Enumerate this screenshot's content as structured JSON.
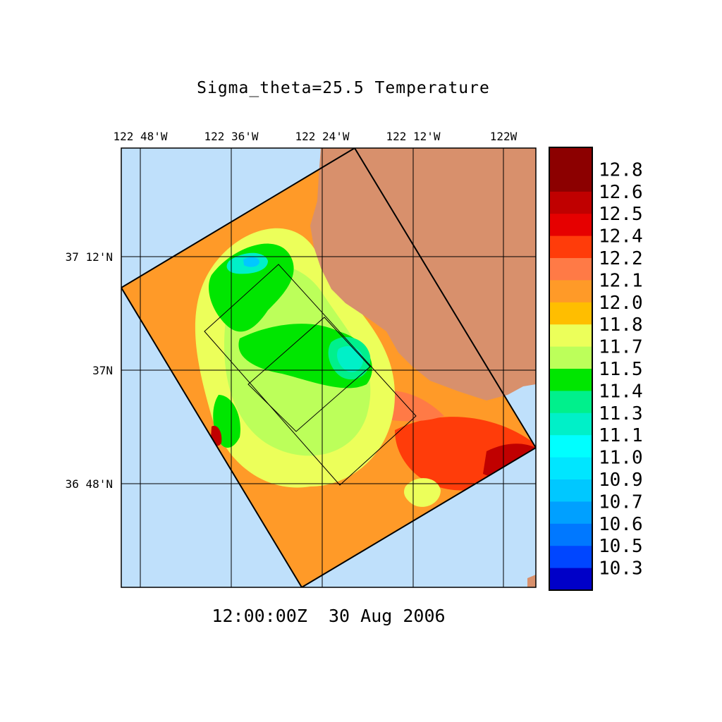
{
  "title": "Sigma_theta=25.5 Temperature",
  "timestamp": "12:00:00Z  30 Aug 2006",
  "longitude_ticks": [
    "122 48'W",
    "122 36'W",
    "122 24'W",
    "122 12'W",
    "122W"
  ],
  "latitude_ticks": [
    "37 12'N",
    "37N",
    "36 48'N"
  ],
  "colorbar": {
    "labels": [
      "12.8",
      "12.6",
      "12.5",
      "12.4",
      "12.2",
      "12.1",
      "12.0",
      "11.8",
      "11.7",
      "11.5",
      "11.4",
      "11.3",
      "11.1",
      "11.0",
      "10.9",
      "10.7",
      "10.6",
      "10.5",
      "10.3"
    ],
    "colors": [
      "#8c0000",
      "#c00000",
      "#e60000",
      "#ff3c0a",
      "#ff7a46",
      "#ff9a28",
      "#ffbe00",
      "#ecff5a",
      "#bcff5a",
      "#00e600",
      "#00f08c",
      "#00f0c8",
      "#00ffff",
      "#00e6ff",
      "#00c8ff",
      "#00a0ff",
      "#0078ff",
      "#0046ff",
      "#0000c8"
    ]
  },
  "map_colors": {
    "ocean": "#bfe0fb",
    "land": "#d8906c"
  }
}
